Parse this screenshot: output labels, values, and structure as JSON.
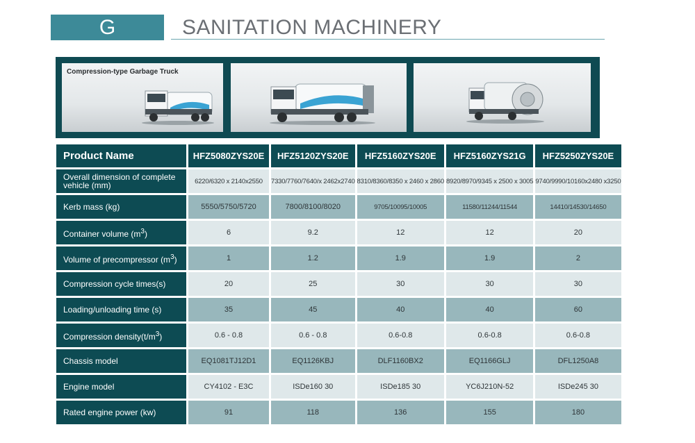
{
  "section": {
    "letter": "G",
    "title": "SANITATION MACHINERY"
  },
  "photos": {
    "caption": "Compression-type Garbage Truck",
    "truck_icon": "garbage-truck-icon"
  },
  "table": {
    "header_label": "Product Name",
    "models": [
      "HFZ5080ZYS20E",
      "HFZ5120ZYS20E",
      "HFZ5160ZYS20E",
      "HFZ5160ZYS21G",
      "HFZ5250ZYS20E"
    ],
    "rows": [
      {
        "label": "Overall dimension of complete vehicle (mm)",
        "values": [
          "6220/6320 x 2140x2550",
          "7330/7760/7640/x 2462x2740",
          "8310/8360/8350 x 2460 x 2860",
          "8920/8970/9345 x 2500 x 3005",
          "9740/9990/10160x2480 x3250"
        ]
      },
      {
        "label": "Kerb mass (kg)",
        "values": [
          "5550/5750/5720",
          "7800/8100/8020",
          "9705/10095/10005",
          "11580/11244/11544",
          "14410/14530/14650"
        ]
      },
      {
        "label": "Container volume (m3)",
        "label_main": "Container volume (m",
        "label_sup": "3",
        "label_end": ")",
        "values": [
          "6",
          "9.2",
          "12",
          "12",
          "20"
        ]
      },
      {
        "label": "Volume of precompressor (m3)",
        "label_main": "Volume of precompressor (m",
        "label_sup": "3",
        "label_end": ")",
        "values": [
          "1",
          "1.2",
          "1.9",
          "1.9",
          "2"
        ]
      },
      {
        "label": "Compression cycle times(s)",
        "values": [
          "20",
          "25",
          "30",
          "30",
          "30"
        ]
      },
      {
        "label": "Loading/unloading time (s)",
        "values": [
          "35",
          "45",
          "40",
          "40",
          "60"
        ]
      },
      {
        "label": "Compression density(t/m3)",
        "label_main": "Compression density(t/m",
        "label_sup": "3",
        "label_end": ")",
        "values": [
          "0.6 - 0.8",
          "0.6 - 0.8",
          "0.6-0.8",
          "0.6-0.8",
          "0.6-0.8"
        ]
      },
      {
        "label": "Chassis model",
        "values": [
          "EQ1081TJ12D1",
          "EQ1126KBJ",
          "DLF1160BX2",
          "EQ1166GLJ",
          "DFL1250A8"
        ]
      },
      {
        "label": "Engine model",
        "values": [
          "CY4102 - E3C",
          "ISDe160 30",
          "ISDe185 30",
          "YC6J210N-52",
          "ISDe245 30"
        ]
      },
      {
        "label": "Rated engine power (kw)",
        "values": [
          "91",
          "118",
          "136",
          "155",
          "180"
        ]
      }
    ]
  }
}
